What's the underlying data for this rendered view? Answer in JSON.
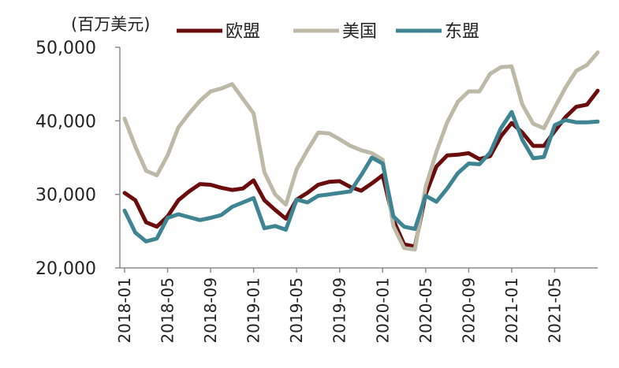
{
  "chart_data": {
    "type": "line",
    "unit_label": "(百万美元)",
    "ylim": [
      20000,
      50000
    ],
    "y_ticks": [
      20000,
      30000,
      40000,
      50000
    ],
    "y_tick_labels": [
      "20,000",
      "30,000",
      "40,000",
      "50,000"
    ],
    "x": [
      "2018-01",
      "2018-02",
      "2018-03",
      "2018-04",
      "2018-05",
      "2018-06",
      "2018-07",
      "2018-08",
      "2018-09",
      "2018-10",
      "2018-11",
      "2018-12",
      "2019-01",
      "2019-02",
      "2019-03",
      "2019-04",
      "2019-05",
      "2019-06",
      "2019-07",
      "2019-08",
      "2019-09",
      "2019-10",
      "2019-11",
      "2019-12",
      "2020-01",
      "2020-02",
      "2020-03",
      "2020-04",
      "2020-05",
      "2020-06",
      "2020-07",
      "2020-08",
      "2020-09",
      "2020-10",
      "2020-11",
      "2020-12",
      "2021-01",
      "2021-02",
      "2021-03",
      "2021-04",
      "2021-05",
      "2021-06",
      "2021-07",
      "2021-08",
      "2021-09"
    ],
    "x_tick_labels": [
      "2018-01",
      "2018-05",
      "2018-09",
      "2019-01",
      "2019-05",
      "2019-09",
      "2020-01",
      "2020-05",
      "2020-09",
      "2021-01",
      "2021-05"
    ],
    "legend_position": "top",
    "grid": false,
    "series": [
      {
        "name": "欧盟",
        "color": "#6b0d0d",
        "values": [
          30200,
          29200,
          26200,
          25600,
          27000,
          29200,
          30400,
          31400,
          31300,
          30900,
          30600,
          30800,
          31900,
          29200,
          27900,
          26700,
          29300,
          30200,
          31300,
          31700,
          31800,
          31000,
          30500,
          31500,
          32600,
          26500,
          23200,
          22900,
          30000,
          33800,
          35300,
          35400,
          35600,
          34800,
          35200,
          37900,
          39700,
          38400,
          36600,
          36600,
          38600,
          40500,
          41900,
          42200,
          44100
        ]
      },
      {
        "name": "美国",
        "color": "#bcb9a6",
        "values": [
          40300,
          36500,
          33200,
          32600,
          35300,
          39100,
          41000,
          42700,
          44000,
          44400,
          45000,
          43000,
          41000,
          33000,
          30000,
          28600,
          33400,
          36000,
          38400,
          38300,
          37500,
          36600,
          36000,
          35600,
          34700,
          25700,
          22700,
          22500,
          31000,
          35800,
          39800,
          42600,
          44000,
          44000,
          46400,
          47300,
          47400,
          42200,
          39600,
          39000,
          41800,
          44500,
          46800,
          47600,
          49300
        ]
      },
      {
        "name": "东盟",
        "color": "#3e8493",
        "values": [
          27800,
          24800,
          23600,
          24000,
          26800,
          27300,
          26900,
          26500,
          26800,
          27200,
          28300,
          28900,
          29500,
          25400,
          25700,
          25200,
          29300,
          28900,
          29800,
          30000,
          30200,
          30400,
          32600,
          35000,
          34200,
          27000,
          25600,
          25300,
          29800,
          29000,
          30800,
          32900,
          34200,
          34100,
          35700,
          39000,
          41200,
          37400,
          34900,
          35100,
          39400,
          40100,
          39800,
          39800,
          39900
        ]
      }
    ]
  }
}
